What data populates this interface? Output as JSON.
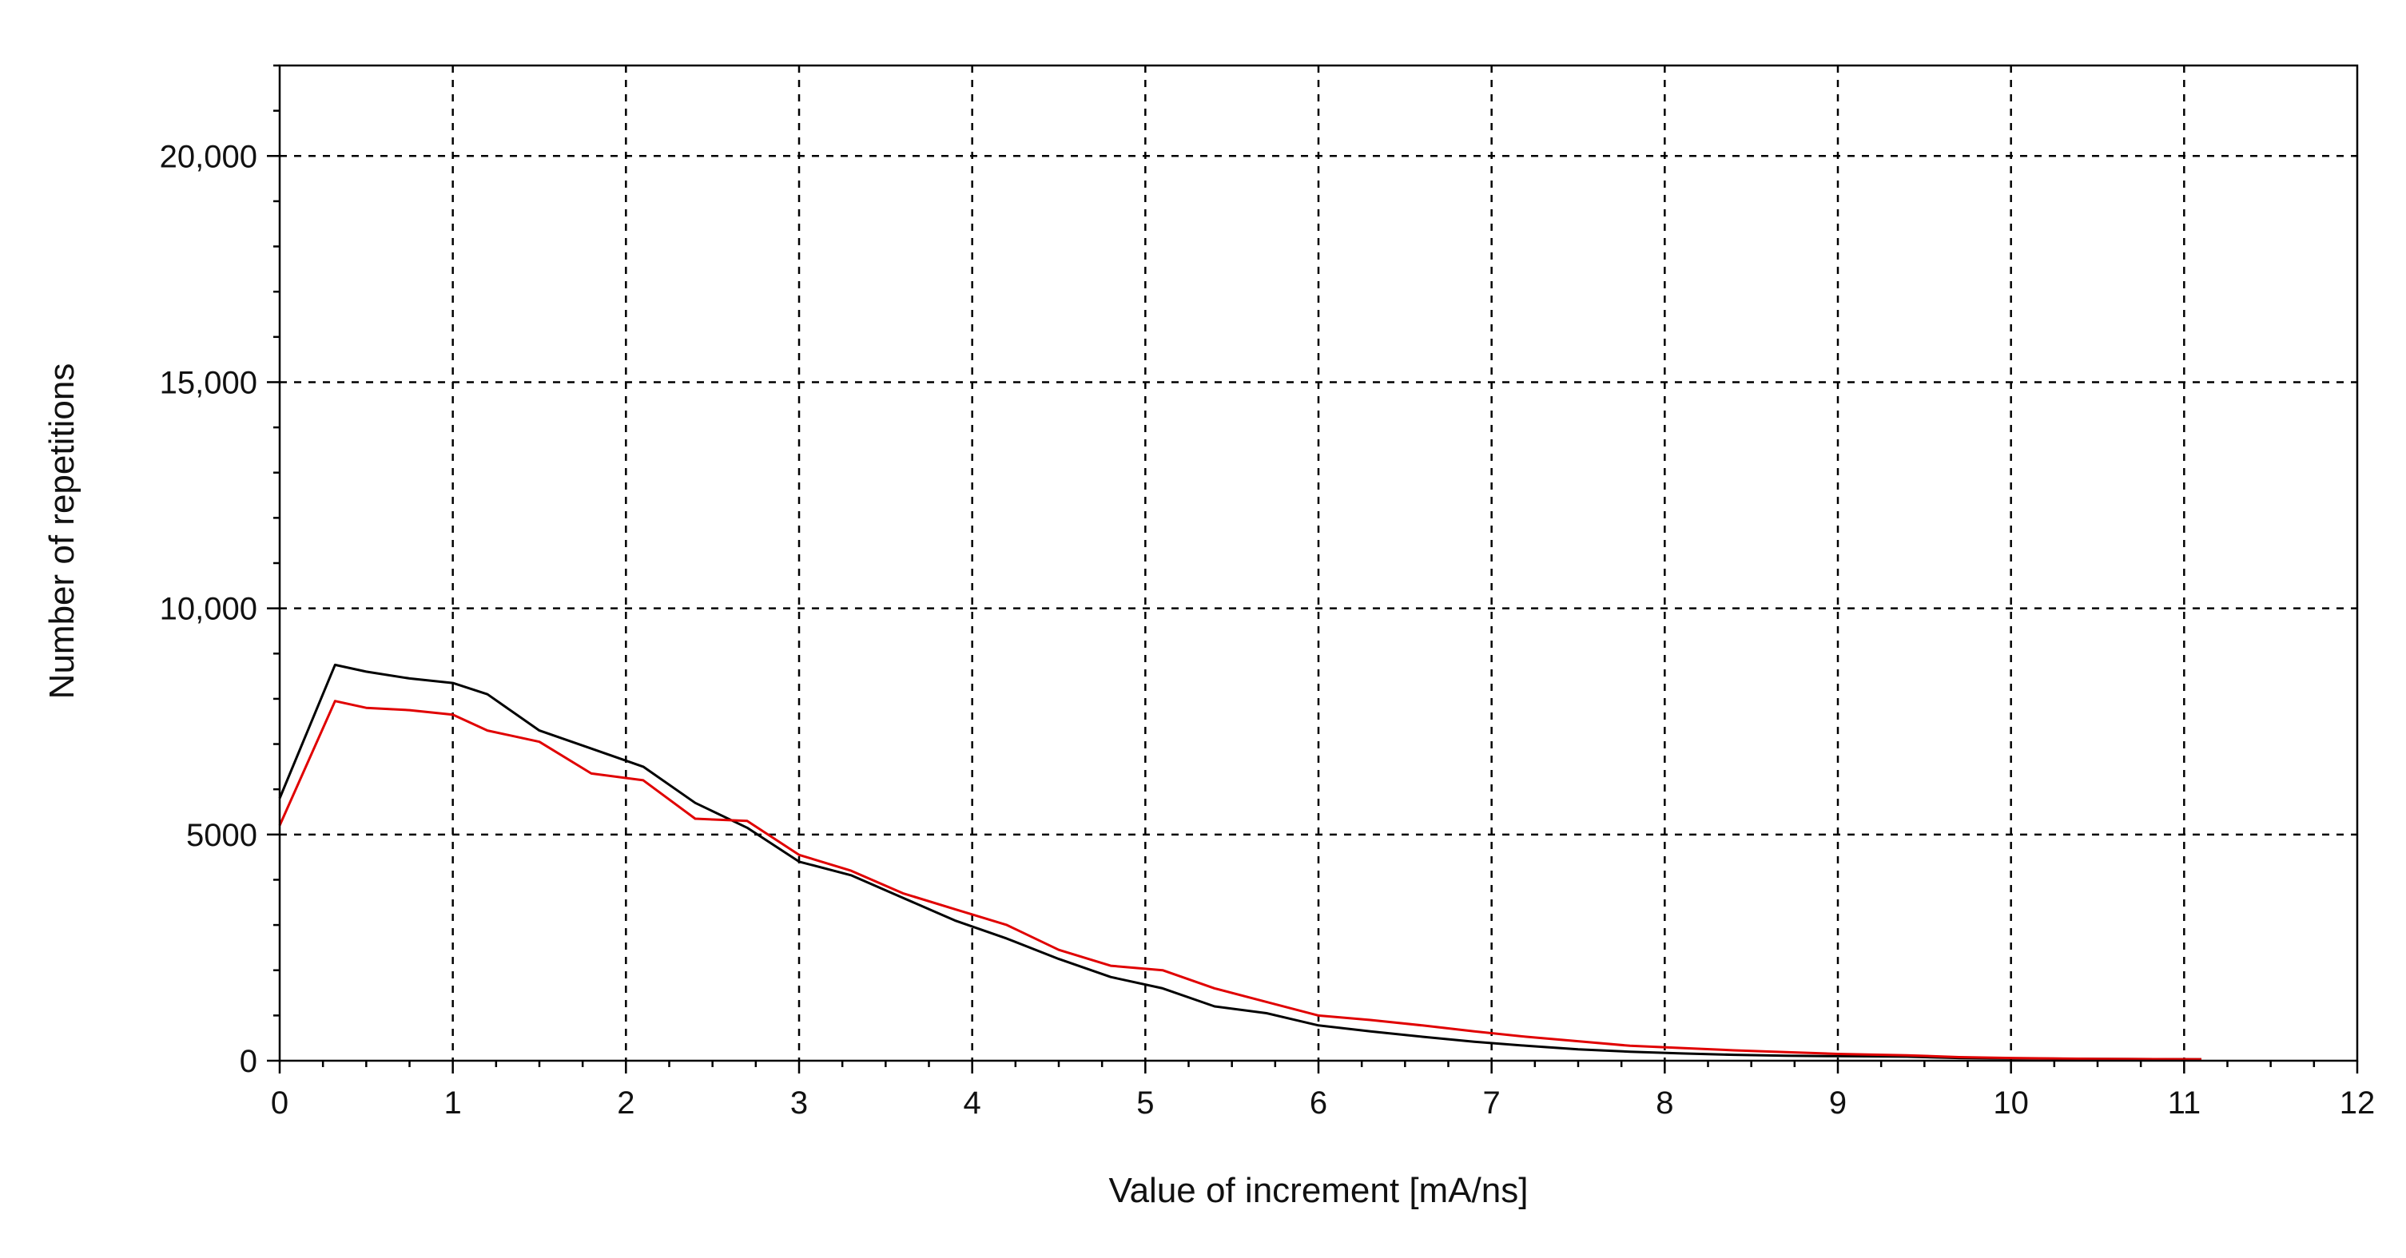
{
  "chart_data": {
    "type": "line",
    "xlabel": "Value of increment [mA/ns]",
    "ylabel": "Number of repetitions",
    "xlim": [
      0,
      12
    ],
    "ylim": [
      0,
      22000
    ],
    "grid": true,
    "x_ticks": [
      0,
      1,
      2,
      3,
      4,
      5,
      6,
      7,
      8,
      9,
      10,
      11,
      12
    ],
    "x_tick_labels": [
      "0",
      "1",
      "2",
      "3",
      "4",
      "5",
      "6",
      "7",
      "8",
      "9",
      "10",
      "11",
      "12"
    ],
    "y_ticks": [
      0,
      5000,
      10000,
      15000,
      20000
    ],
    "y_tick_labels": [
      "0",
      "5000",
      "10,000",
      "15,000",
      "20,000"
    ],
    "series": [
      {
        "color": "#000000",
        "x": [
          0,
          0.32,
          0.5,
          0.75,
          1.0,
          1.2,
          1.5,
          1.8,
          2.1,
          2.4,
          2.7,
          3.0,
          3.3,
          3.6,
          3.9,
          4.2,
          4.5,
          4.8,
          5.1,
          5.4,
          5.7,
          6.0,
          6.3,
          6.6,
          6.9,
          7.2,
          7.5,
          7.8,
          8.1,
          8.4,
          8.7,
          9.0,
          9.4,
          9.7,
          10.0,
          10.5,
          11.1
        ],
        "y": [
          5800,
          8750,
          8600,
          8450,
          8350,
          8100,
          7300,
          6900,
          6500,
          5700,
          5150,
          4400,
          4100,
          3600,
          3100,
          2700,
          2250,
          1850,
          1600,
          1200,
          1050,
          780,
          650,
          530,
          420,
          330,
          250,
          200,
          160,
          130,
          110,
          100,
          90,
          60,
          50,
          40,
          30
        ]
      },
      {
        "color": "#e00000",
        "x": [
          0,
          0.32,
          0.5,
          0.75,
          1.0,
          1.2,
          1.5,
          1.8,
          2.1,
          2.4,
          2.7,
          3.0,
          3.3,
          3.6,
          3.9,
          4.2,
          4.5,
          4.8,
          5.1,
          5.4,
          5.7,
          6.0,
          6.3,
          6.6,
          6.9,
          7.2,
          7.5,
          7.8,
          8.1,
          8.4,
          8.7,
          9.0,
          9.4,
          9.7,
          10.0,
          10.5,
          11.1
        ],
        "y": [
          5200,
          7950,
          7800,
          7750,
          7650,
          7300,
          7050,
          6350,
          6200,
          5350,
          5300,
          4550,
          4200,
          3700,
          3350,
          3000,
          2450,
          2100,
          2000,
          1600,
          1300,
          1000,
          900,
          780,
          650,
          530,
          430,
          330,
          280,
          230,
          190,
          150,
          120,
          80,
          60,
          40,
          30
        ]
      }
    ]
  }
}
